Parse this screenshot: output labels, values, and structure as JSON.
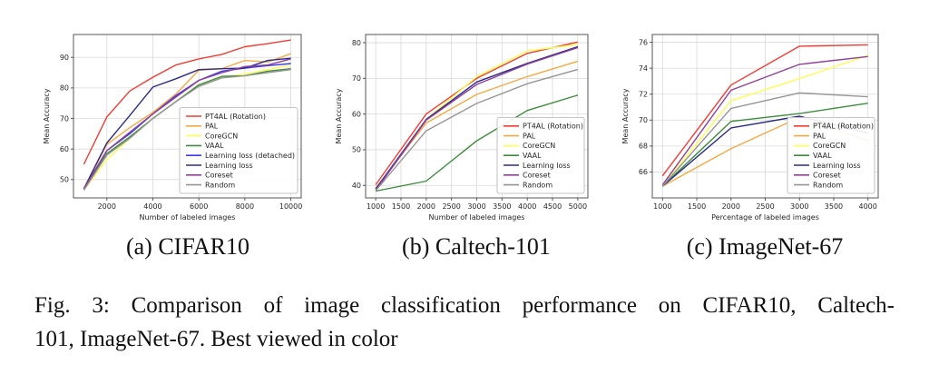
{
  "figure": {
    "subcaptions": [
      {
        "label": "(a) CIFAR10"
      },
      {
        "label": "(b) Caltech-101"
      },
      {
        "label": "(c) ImageNet-67"
      }
    ],
    "caption": {
      "line1": "Fig. 3: Comparison of image classification performance on CIFAR10, Caltech-",
      "line2": "101, ImageNet-67. Best viewed in color"
    }
  },
  "style": {
    "grid_color": "#d9d9d9",
    "axis_color": "#555555",
    "tick_text_color": "#262626",
    "legend_border_color": "#b3b3b3",
    "series_colors": {
      "PT4AL (Rotation)": "#f03c32",
      "PAL": "#f5a942",
      "CoreGCN": "#fdfd54",
      "VAAL": "#3c8c3c",
      "Learning loss (detached)": "#3a3aee",
      "Learning loss": "#2b2b85",
      "Coreset": "#8f3f97",
      "Random": "#969696"
    }
  },
  "chart_data": [
    {
      "id": "cifar10",
      "type": "line",
      "title": "",
      "xlabel": "Number of labeled images",
      "ylabel": "Mean Accuracy",
      "x": [
        1000,
        2000,
        3000,
        4000,
        5000,
        6000,
        7000,
        8000,
        9000,
        10000
      ],
      "xlim": [
        550,
        10450
      ],
      "ylim": [
        44,
        97.5
      ],
      "xticks": [
        2000,
        4000,
        6000,
        8000,
        10000
      ],
      "yticks": [
        50,
        60,
        70,
        80,
        90
      ],
      "grid": true,
      "legend_position": "lower right",
      "series": [
        {
          "name": "PT4AL (Rotation)",
          "color": "#f03c32",
          "values": [
            55,
            70.5,
            79,
            83.5,
            87.5,
            89.5,
            91,
            93.5,
            94.5,
            95.7
          ]
        },
        {
          "name": "PAL",
          "color": "#f5a942",
          "values": [
            47,
            61.5,
            67,
            72,
            78,
            85.8,
            86.3,
            89,
            88.5,
            91.2
          ]
        },
        {
          "name": "CoreGCN",
          "color": "#fdfd54",
          "values": [
            46.5,
            56.5,
            63.5,
            70,
            75.5,
            81,
            83.5,
            84.5,
            86,
            87.5
          ]
        },
        {
          "name": "VAAL",
          "color": "#3c8c3c",
          "values": [
            47,
            58.5,
            64,
            70,
            75.5,
            81,
            83.8,
            84,
            85.5,
            86.3
          ]
        },
        {
          "name": "Learning loss (detached)",
          "color": "#3a3aee",
          "values": [
            47,
            59.5,
            65,
            71.5,
            77.5,
            82.5,
            85.5,
            86.5,
            87.3,
            88
          ]
        },
        {
          "name": "Learning loss",
          "color": "#2b2b85",
          "values": [
            47,
            62,
            71,
            80.3,
            83,
            86,
            86.3,
            86.5,
            89,
            89.7
          ]
        },
        {
          "name": "Coreset",
          "color": "#8f3f97",
          "values": [
            47,
            59.5,
            65.5,
            71.5,
            77,
            82.5,
            85,
            87,
            87.5,
            89.5
          ]
        },
        {
          "name": "Random",
          "color": "#969696",
          "values": [
            46.5,
            58,
            63.5,
            70,
            75.5,
            80.5,
            83.3,
            84,
            85,
            86
          ]
        }
      ]
    },
    {
      "id": "caltech101",
      "type": "line",
      "title": "",
      "xlabel": "Number of labeled images",
      "ylabel": "Mean Accuracy",
      "x": [
        1000,
        2000,
        3000,
        4000,
        5000
      ],
      "xlim": [
        800,
        5200
      ],
      "ylim": [
        36.5,
        82.3
      ],
      "xticks": [
        1000,
        1500,
        2000,
        2500,
        3000,
        3500,
        4000,
        4500,
        5000
      ],
      "yticks": [
        40,
        50,
        60,
        70,
        80
      ],
      "grid": true,
      "legend_position": "lower right",
      "series": [
        {
          "name": "PT4AL (Rotation)",
          "color": "#f03c32",
          "values": [
            40.2,
            60,
            70,
            77,
            80.2
          ]
        },
        {
          "name": "PAL",
          "color": "#f5a942",
          "values": [
            39.2,
            57.5,
            65.5,
            70.5,
            74.8
          ]
        },
        {
          "name": "CoreGCN",
          "color": "#fdfd54",
          "values": [
            38.7,
            58.5,
            70.5,
            77.7,
            79.5
          ]
        },
        {
          "name": "VAAL",
          "color": "#3c8c3c",
          "values": [
            38.4,
            41.2,
            52.5,
            61,
            65.3
          ]
        },
        {
          "name": "Learning loss",
          "color": "#2b2b85",
          "values": [
            39,
            58.5,
            69,
            74.2,
            78.9
          ]
        },
        {
          "name": "Coreset",
          "color": "#8f3f97",
          "values": [
            38.6,
            58.3,
            68.3,
            74,
            78.6
          ]
        },
        {
          "name": "Random",
          "color": "#969696",
          "values": [
            38.5,
            55.3,
            63,
            68.5,
            72.5
          ]
        }
      ]
    },
    {
      "id": "imagenet67",
      "type": "line",
      "title": "",
      "xlabel": "Percentage of labeled images",
      "ylabel": "Mean Accuracy",
      "x": [
        1000,
        2000,
        3000,
        4000
      ],
      "xlim": [
        850,
        4150
      ],
      "ylim": [
        64,
        76.6
      ],
      "xticks": [
        1000,
        1500,
        2000,
        2500,
        3000,
        3500,
        4000
      ],
      "yticks": [
        66,
        68,
        70,
        72,
        74,
        76
      ],
      "grid": true,
      "legend_position": "lower right",
      "series": [
        {
          "name": "PT4AL (Rotation)",
          "color": "#f03c32",
          "values": [
            65.7,
            72.7,
            75.7,
            75.8
          ]
        },
        {
          "name": "PAL",
          "color": "#f5a942",
          "values": [
            64.9,
            67.8,
            70.2,
            68.4
          ]
        },
        {
          "name": "CoreGCN",
          "color": "#fdfd54",
          "values": [
            64.9,
            71.5,
            73.2,
            75.0
          ]
        },
        {
          "name": "VAAL",
          "color": "#3c8c3c",
          "values": [
            64.9,
            69.9,
            70.5,
            71.3
          ]
        },
        {
          "name": "Learning loss",
          "color": "#2b2b85",
          "values": [
            64.9,
            69.4,
            70.3,
            69.0
          ]
        },
        {
          "name": "Coreset",
          "color": "#8f3f97",
          "values": [
            65.0,
            72.3,
            74.3,
            74.9
          ]
        },
        {
          "name": "Random",
          "color": "#969696",
          "values": [
            64.9,
            70.9,
            72.1,
            71.8
          ]
        }
      ]
    }
  ]
}
